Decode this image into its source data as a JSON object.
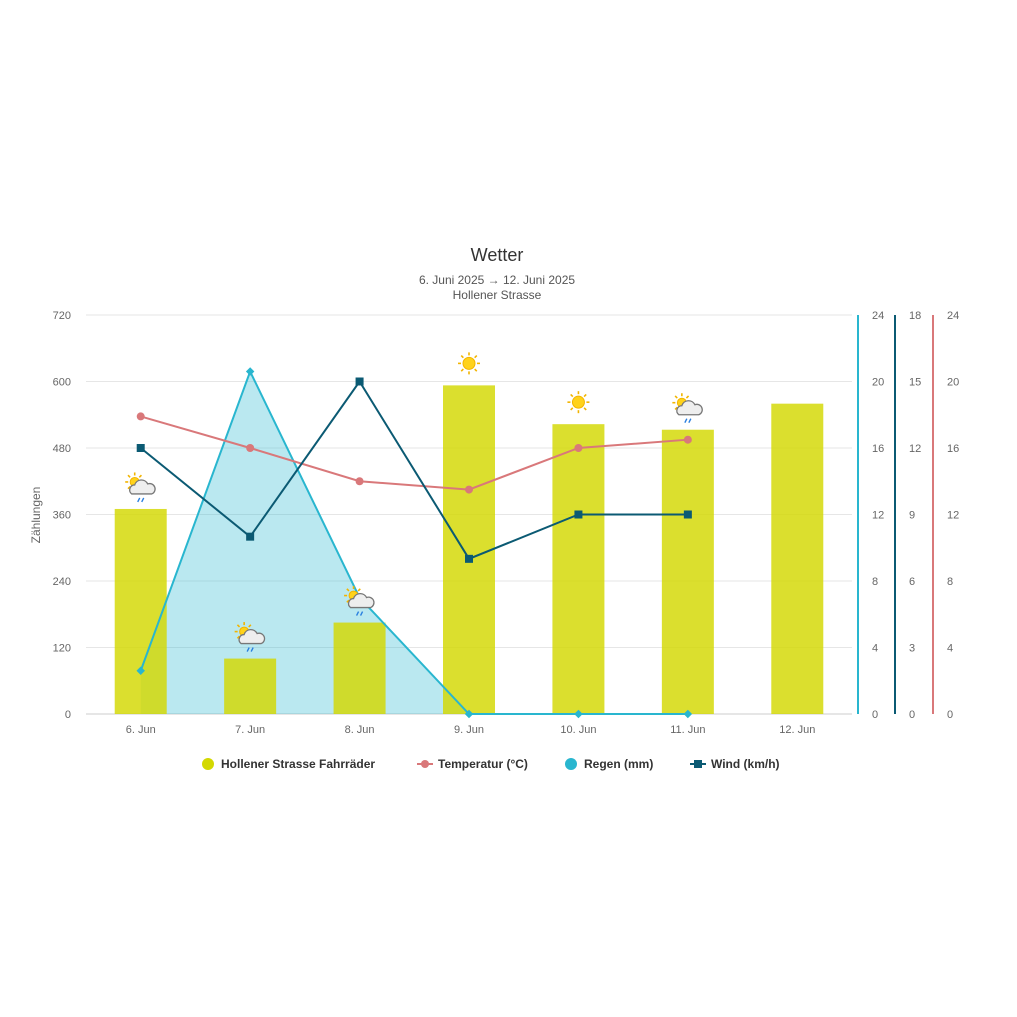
{
  "chart_data": {
    "type": "bar",
    "title": "Wetter",
    "subtitle_dates": "6. Juni 2025 → 12. Juni 2025",
    "subtitle_location": "Hollener Strasse",
    "categories": [
      "6. Jun",
      "7. Jun",
      "8. Jun",
      "9. Jun",
      "10. Jun",
      "11. Jun",
      "12. Jun"
    ],
    "ylabel": "Zählungen",
    "ylim": [
      0,
      720
    ],
    "y_ticks": [
      0,
      120,
      240,
      360,
      480,
      600,
      720
    ],
    "grid": true,
    "legend_placement": "bottom",
    "axes_right": [
      {
        "series": "Regen (mm)",
        "ylim": [
          0,
          24
        ],
        "ticks": [
          0,
          4,
          8,
          12,
          16,
          20,
          24
        ],
        "color": "#29b6cf"
      },
      {
        "series": "Wind (km/h)",
        "ylim": [
          0,
          18
        ],
        "ticks": [
          0,
          3,
          6,
          9,
          12,
          15,
          18
        ],
        "color": "#0b5a73"
      },
      {
        "series": "Temperatur (°C)",
        "ylim": [
          0,
          24
        ],
        "ticks": [
          0,
          4,
          8,
          12,
          16,
          20,
          24
        ],
        "color": "#d9787a"
      }
    ],
    "series": [
      {
        "name": "Hollener Strasse Fahrräder",
        "type": "bar",
        "color": "#d3d800",
        "values": [
          370,
          100,
          165,
          593,
          523,
          513,
          560
        ]
      },
      {
        "name": "Temperatur (°C)",
        "type": "line",
        "color": "#d9787a",
        "values": [
          17.9,
          16.0,
          14.0,
          13.5,
          16.0,
          16.5,
          null
        ]
      },
      {
        "name": "Regen (mm)",
        "type": "area",
        "color": "#29b6cf",
        "values": [
          2.6,
          20.6,
          7.0,
          0,
          0,
          0,
          null
        ]
      },
      {
        "name": "Wind (km/h)",
        "type": "line",
        "color": "#0b5a73",
        "values": [
          12,
          8,
          15,
          7,
          9,
          9,
          null
        ]
      }
    ],
    "weather_icons": [
      "partly-cloudy-rain",
      "partly-cloudy-rain",
      "partly-cloudy-rain",
      "sunny",
      "sunny",
      "partly-cloudy-rain",
      null
    ]
  }
}
